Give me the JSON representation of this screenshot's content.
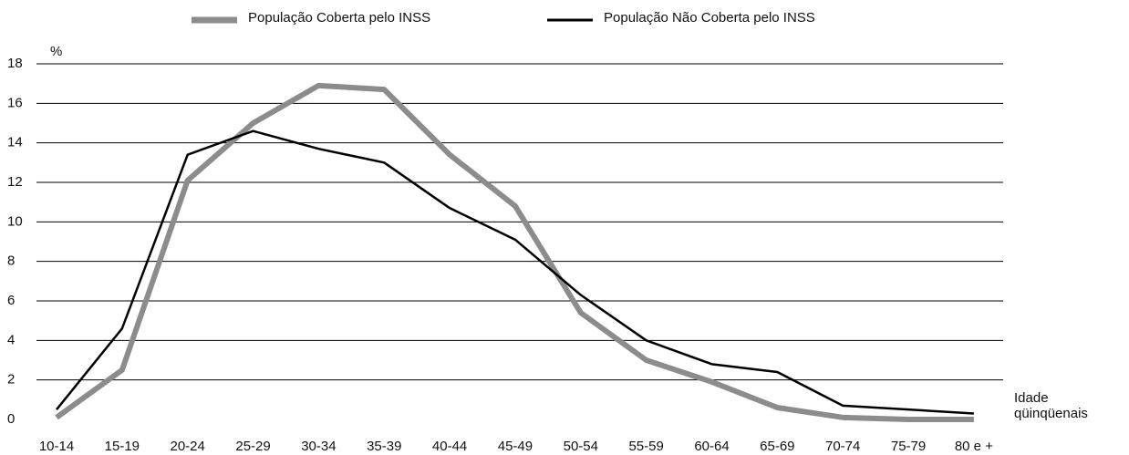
{
  "chart_data": {
    "type": "line",
    "y_label": "%",
    "x_label": "Idade qüinqüenais",
    "categories": [
      "10-14",
      "15-19",
      "20-24",
      "25-29",
      "30-34",
      "35-39",
      "40-44",
      "45-49",
      "50-54",
      "55-59",
      "60-64",
      "65-69",
      "70-74",
      "75-79",
      "80 e +"
    ],
    "series": [
      {
        "name": "População Coberta pelo INSS",
        "color": "#8c8c8c",
        "values": [
          0.1,
          2.5,
          12.1,
          15.0,
          16.9,
          16.7,
          13.4,
          10.8,
          5.4,
          3.0,
          1.9,
          0.6,
          0.1,
          0.0,
          0.0
        ]
      },
      {
        "name": "População Não Coberta pelo INSS",
        "color": "#000000",
        "values": [
          0.5,
          4.6,
          13.4,
          14.6,
          13.7,
          13.0,
          10.7,
          9.1,
          6.3,
          4.0,
          2.8,
          2.4,
          0.7,
          0.5,
          0.3
        ]
      }
    ],
    "ylim": [
      0,
      18
    ],
    "yticks": [
      0,
      2,
      4,
      6,
      8,
      10,
      12,
      14,
      16,
      18
    ],
    "grid": true,
    "legend": "top"
  }
}
